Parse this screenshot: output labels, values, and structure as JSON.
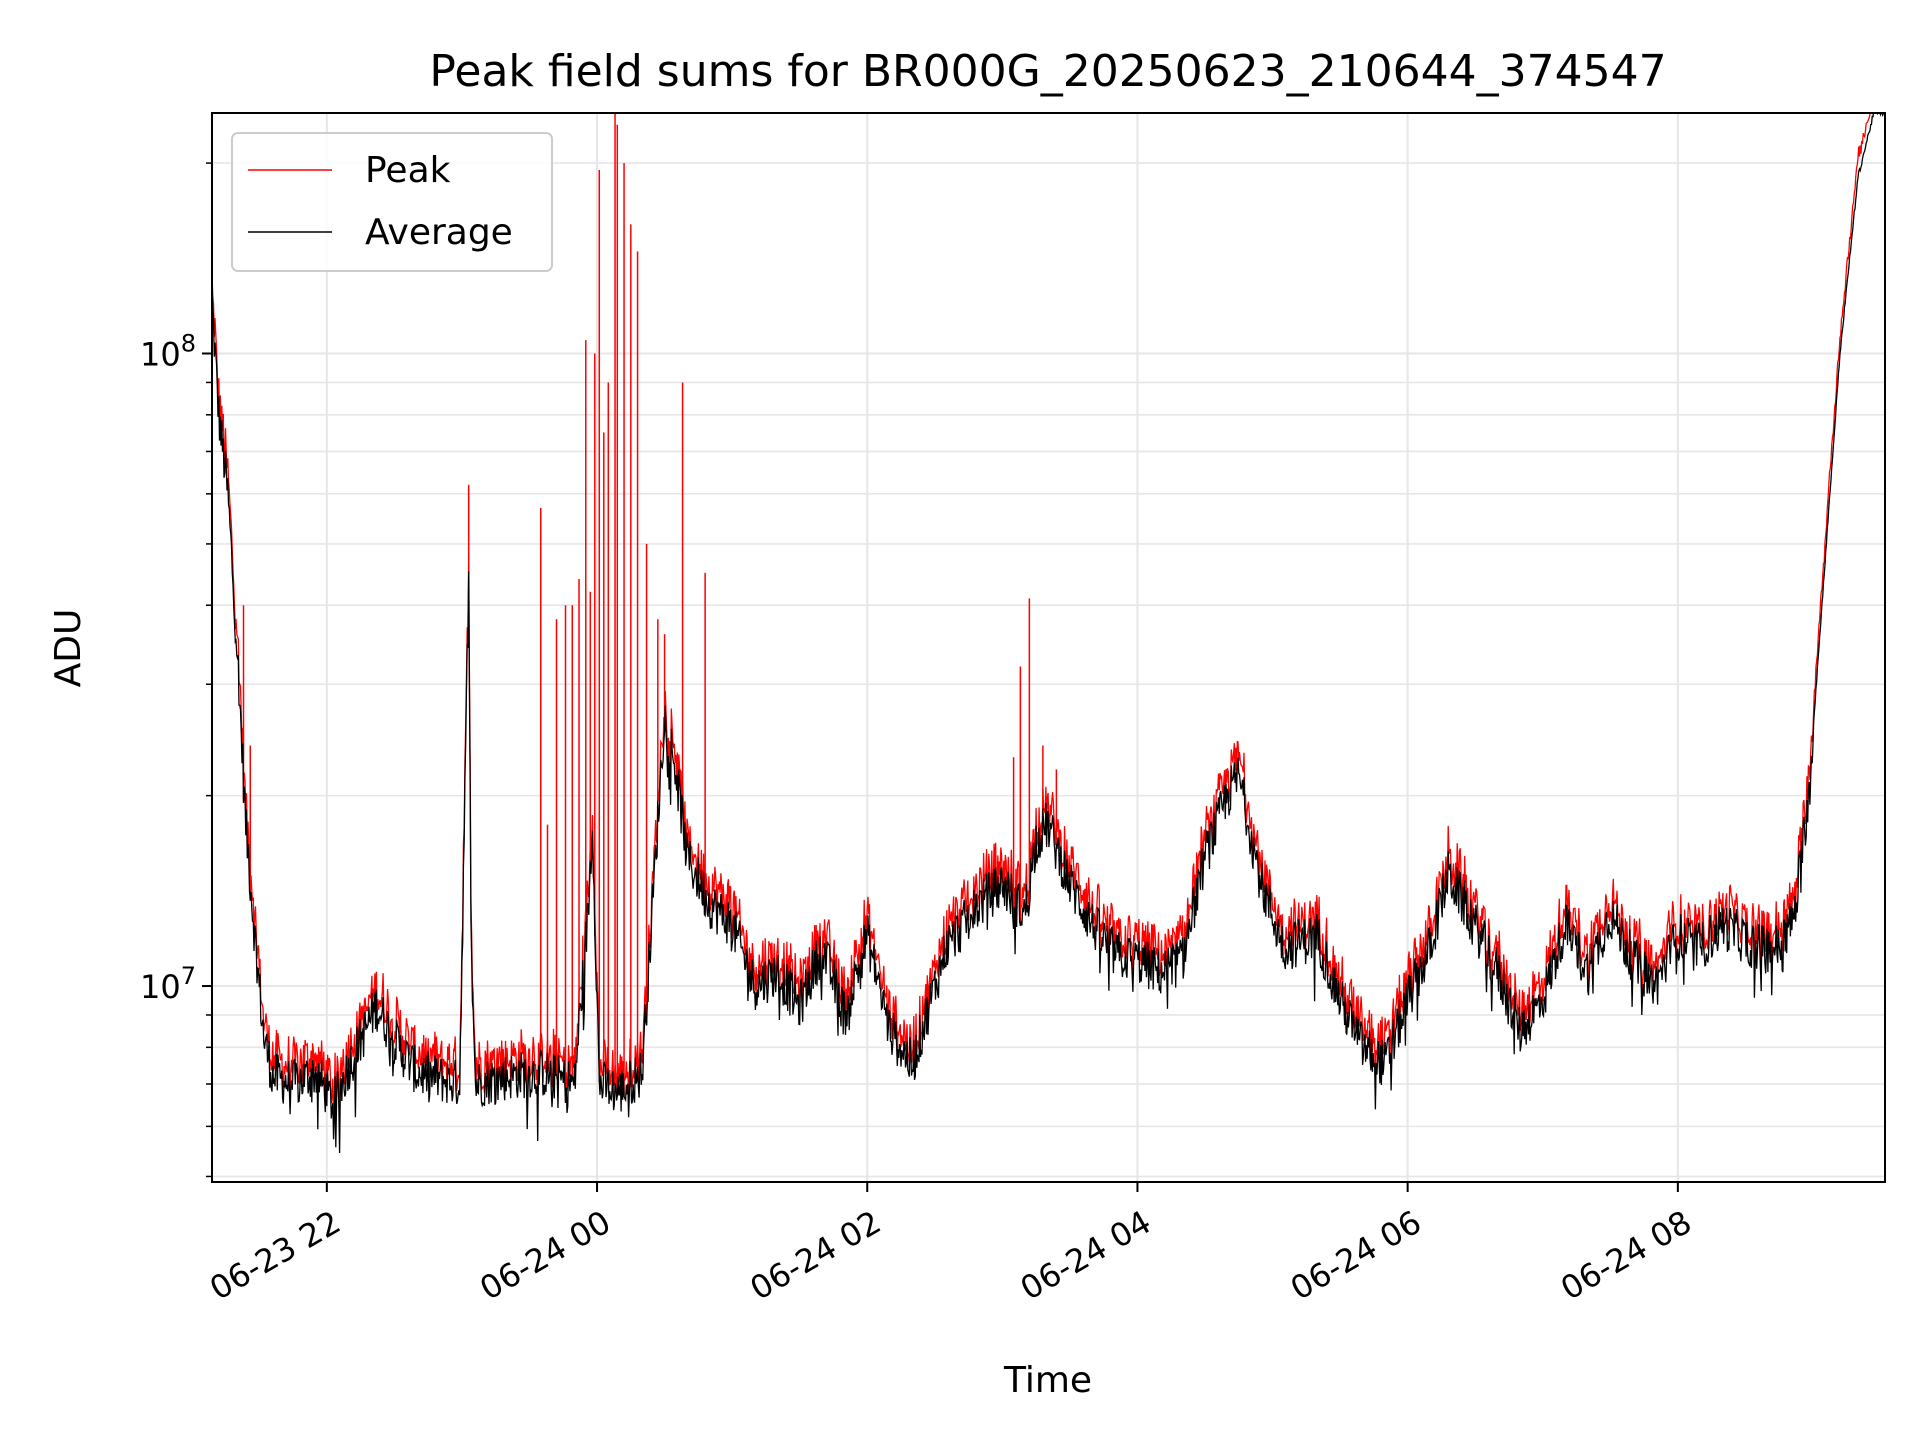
{
  "chart_data": {
    "type": "line",
    "title": "Peak field sums for BR000G_20250623_210644_374547",
    "xlabel": "Time",
    "ylabel": "ADU",
    "yscale": "log",
    "ylim": [
      4900000,
      240000000
    ],
    "xlim": [
      "2025-06-23 21:09",
      "2025-06-24 09:32"
    ],
    "grid": true,
    "legend_position": "top-left",
    "x_ticks": [
      {
        "value": "2025-06-23 22:00",
        "label": "06-23 22"
      },
      {
        "value": "2025-06-24 00:00",
        "label": "06-24 00"
      },
      {
        "value": "2025-06-24 02:00",
        "label": "06-24 02"
      },
      {
        "value": "2025-06-24 04:00",
        "label": "06-24 04"
      },
      {
        "value": "2025-06-24 06:00",
        "label": "06-24 06"
      },
      {
        "value": "2025-06-24 08:00",
        "label": "06-24 08"
      }
    ],
    "y_ticks": [
      {
        "value": 10000000,
        "base": "10",
        "exp": "7"
      },
      {
        "value": 100000000,
        "base": "10",
        "exp": "8"
      }
    ],
    "average_points": [
      [
        "2025-06-23 21:09",
        120000000
      ],
      [
        "2025-06-23 21:12",
        80000000
      ],
      [
        "2025-06-23 21:16",
        60000000
      ],
      [
        "2025-06-23 21:20",
        35000000
      ],
      [
        "2025-06-23 21:24",
        18000000
      ],
      [
        "2025-06-23 21:28",
        12000000
      ],
      [
        "2025-06-23 21:32",
        8300000
      ],
      [
        "2025-06-23 21:36",
        7200000
      ],
      [
        "2025-06-23 21:45",
        7000000
      ],
      [
        "2025-06-23 21:55",
        7300000
      ],
      [
        "2025-06-23 22:03",
        6500000
      ],
      [
        "2025-06-23 22:10",
        7500000
      ],
      [
        "2025-06-23 22:22",
        9300000
      ],
      [
        "2025-06-23 22:32",
        8000000
      ],
      [
        "2025-06-23 22:40",
        7300000
      ],
      [
        "2025-06-23 22:52",
        7100000
      ],
      [
        "2025-06-23 22:59",
        7000000
      ],
      [
        "2025-06-23 23:02",
        27000000
      ],
      [
        "2025-06-23 23:03",
        50000000
      ],
      [
        "2025-06-23 23:04",
        12000000
      ],
      [
        "2025-06-23 23:06",
        7000000
      ],
      [
        "2025-06-23 23:20",
        7200000
      ],
      [
        "2025-06-23 23:35",
        7300000
      ],
      [
        "2025-06-23 23:50",
        7000000
      ],
      [
        "2025-06-23 23:56",
        13000000
      ],
      [
        "2025-06-23 23:58",
        18000000
      ],
      [
        "2025-06-24 00:01",
        7000000
      ],
      [
        "2025-06-24 00:10",
        6800000
      ],
      [
        "2025-06-24 00:20",
        7300000
      ],
      [
        "2025-06-24 00:25",
        14000000
      ],
      [
        "2025-06-24 00:30",
        27000000
      ],
      [
        "2025-06-24 00:35",
        22000000
      ],
      [
        "2025-06-24 00:40",
        16000000
      ],
      [
        "2025-06-24 00:50",
        13500000
      ],
      [
        "2025-06-24 01:00",
        12500000
      ],
      [
        "2025-06-24 01:10",
        10000000
      ],
      [
        "2025-06-24 01:20",
        10500000
      ],
      [
        "2025-06-24 01:30",
        9300000
      ],
      [
        "2025-06-24 01:40",
        11500000
      ],
      [
        "2025-06-24 01:50",
        9000000
      ],
      [
        "2025-06-24 02:00",
        12000000
      ],
      [
        "2025-06-24 02:10",
        8500000
      ],
      [
        "2025-06-24 02:20",
        7500000
      ],
      [
        "2025-06-24 02:35",
        11500000
      ],
      [
        "2025-06-24 02:50",
        13500000
      ],
      [
        "2025-06-24 03:00",
        14500000
      ],
      [
        "2025-06-24 03:10",
        13000000
      ],
      [
        "2025-06-24 03:15",
        17000000
      ],
      [
        "2025-06-24 03:20",
        18000000
      ],
      [
        "2025-06-24 03:30",
        14500000
      ],
      [
        "2025-06-24 03:40",
        12500000
      ],
      [
        "2025-06-24 03:50",
        11200000
      ],
      [
        "2025-06-24 04:00",
        11000000
      ],
      [
        "2025-06-24 04:10",
        10500000
      ],
      [
        "2025-06-24 04:20",
        11000000
      ],
      [
        "2025-06-24 04:30",
        16000000
      ],
      [
        "2025-06-24 04:40",
        20000000
      ],
      [
        "2025-06-24 04:45",
        21500000
      ],
      [
        "2025-06-24 04:55",
        14500000
      ],
      [
        "2025-06-24 05:05",
        11500000
      ],
      [
        "2025-06-24 05:20",
        12000000
      ],
      [
        "2025-06-24 05:30",
        9500000
      ],
      [
        "2025-06-24 05:40",
        8000000
      ],
      [
        "2025-06-24 05:50",
        7500000
      ],
      [
        "2025-06-24 06:00",
        9500000
      ],
      [
        "2025-06-24 06:10",
        11500000
      ],
      [
        "2025-06-24 06:18",
        15000000
      ],
      [
        "2025-06-24 06:25",
        13500000
      ],
      [
        "2025-06-24 06:40",
        10500000
      ],
      [
        "2025-06-24 06:50",
        8500000
      ],
      [
        "2025-06-24 07:00",
        9500000
      ],
      [
        "2025-06-24 07:10",
        12500000
      ],
      [
        "2025-06-24 07:20",
        10500000
      ],
      [
        "2025-06-24 07:30",
        13000000
      ],
      [
        "2025-06-24 07:40",
        11000000
      ],
      [
        "2025-06-24 07:50",
        10000000
      ],
      [
        "2025-06-24 08:00",
        12000000
      ],
      [
        "2025-06-24 08:10",
        11500000
      ],
      [
        "2025-06-24 08:20",
        12500000
      ],
      [
        "2025-06-24 08:35",
        11500000
      ],
      [
        "2025-06-24 08:45",
        11500000
      ],
      [
        "2025-06-24 08:52",
        13000000
      ],
      [
        "2025-06-24 08:58",
        20000000
      ],
      [
        "2025-06-24 09:05",
        45000000
      ],
      [
        "2025-06-24 09:12",
        100000000
      ],
      [
        "2025-06-24 09:20",
        190000000
      ],
      [
        "2025-06-24 09:27",
        240000000
      ],
      [
        "2025-06-24 09:32",
        240000000
      ]
    ],
    "peak_spikes": [
      [
        "2025-06-23 21:23",
        40000000
      ],
      [
        "2025-06-23 21:26",
        24000000
      ],
      [
        "2025-06-23 23:03",
        62000000
      ],
      [
        "2025-06-23 23:35",
        57000000
      ],
      [
        "2025-06-23 23:38",
        18000000
      ],
      [
        "2025-06-23 23:42",
        38000000
      ],
      [
        "2025-06-23 23:46",
        40000000
      ],
      [
        "2025-06-23 23:49",
        40000000
      ],
      [
        "2025-06-23 23:52",
        44000000
      ],
      [
        "2025-06-23 23:55",
        105000000
      ],
      [
        "2025-06-23 23:57",
        42000000
      ],
      [
        "2025-06-23 23:59",
        100000000
      ],
      [
        "2025-06-24 00:01",
        195000000
      ],
      [
        "2025-06-24 00:03",
        75000000
      ],
      [
        "2025-06-24 00:05",
        90000000
      ],
      [
        "2025-06-24 00:08",
        240000000
      ],
      [
        "2025-06-24 00:09",
        230000000
      ],
      [
        "2025-06-24 00:12",
        200000000
      ],
      [
        "2025-06-24 00:15",
        160000000
      ],
      [
        "2025-06-24 00:18",
        145000000
      ],
      [
        "2025-06-24 00:22",
        50000000
      ],
      [
        "2025-06-24 00:27",
        38000000
      ],
      [
        "2025-06-24 00:30",
        36000000
      ],
      [
        "2025-06-24 00:38",
        90000000
      ],
      [
        "2025-06-24 00:48",
        45000000
      ],
      [
        "2025-06-24 03:05",
        23000000
      ],
      [
        "2025-06-24 03:08",
        32000000
      ],
      [
        "2025-06-24 03:12",
        41000000
      ],
      [
        "2025-06-24 03:18",
        24000000
      ],
      [
        "2025-06-24 03:24",
        22000000
      ]
    ],
    "series": [
      {
        "name": "Peak",
        "color": "#ff0000",
        "peak_offset_factor": 1.06
      },
      {
        "name": "Average",
        "color": "#000000"
      }
    ]
  }
}
